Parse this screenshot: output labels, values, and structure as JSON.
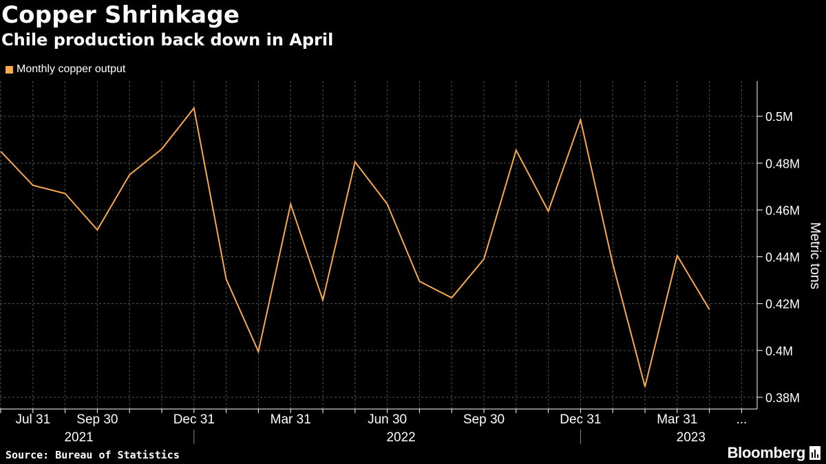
{
  "header": {
    "title": "Copper Shrinkage",
    "subtitle": "Chile production back down in April"
  },
  "footer": {
    "source": "Source: Bureau of Statistics",
    "brand": "Bloomberg"
  },
  "colors": {
    "background": "#000000",
    "series": "#f9a94f",
    "grid": "#555555",
    "text": "#ffffff"
  },
  "chart_data": {
    "type": "line",
    "title": "Copper Shrinkage",
    "subtitle": "Chile production back down in April",
    "ylabel": "Metric tons",
    "ylim": [
      0.375,
      0.515
    ],
    "y_ticks": [
      0.38,
      0.4,
      0.42,
      0.44,
      0.46,
      0.48,
      0.5
    ],
    "y_tick_labels": [
      "0.38M",
      "0.4M",
      "0.42M",
      "0.44M",
      "0.46M",
      "0.48M",
      "0.5M"
    ],
    "y_axis_side": "right",
    "grid": true,
    "legend_position": "top-left",
    "x_tick_labels": [
      "Jul 31",
      "Sep 30",
      "Dec 31",
      "Mar 31",
      "Jun 30",
      "Sep 30",
      "Dec 31",
      "Mar 31",
      "..."
    ],
    "x_year_labels": [
      "2021",
      "2022",
      "2023"
    ],
    "series": [
      {
        "name": "Monthly copper output",
        "x": [
          "2021-06-30",
          "2021-07-31",
          "2021-08-31",
          "2021-09-30",
          "2021-10-31",
          "2021-11-30",
          "2021-12-31",
          "2022-01-31",
          "2022-02-28",
          "2022-03-31",
          "2022-04-30",
          "2022-05-31",
          "2022-06-30",
          "2022-07-31",
          "2022-08-31",
          "2022-09-30",
          "2022-10-31",
          "2022-11-30",
          "2022-12-31",
          "2023-01-31",
          "2023-02-28",
          "2023-03-31",
          "2023-04-30"
        ],
        "values": [
          0.485,
          0.4705,
          0.467,
          0.4515,
          0.475,
          0.486,
          0.5035,
          0.4305,
          0.3995,
          0.4625,
          0.4215,
          0.4805,
          0.4625,
          0.4295,
          0.4225,
          0.439,
          0.4855,
          0.4595,
          0.4985,
          0.437,
          0.3845,
          0.4405,
          0.4175
        ]
      }
    ]
  }
}
